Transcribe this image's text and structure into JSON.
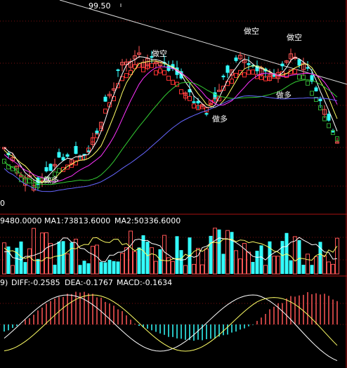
{
  "chart_data": [
    {
      "type": "candlestick",
      "panel": "price",
      "high_label": "99.50",
      "low_label": "0",
      "annotations": [
        {
          "text": "做多",
          "x": 0.14
        },
        {
          "text": "做空",
          "x": 0.44
        },
        {
          "text": "做多",
          "x": 0.61
        },
        {
          "text": "做空",
          "x": 0.7
        },
        {
          "text": "做空",
          "x": 0.85
        },
        {
          "text": "做多",
          "x": 0.82
        }
      ],
      "colors": {
        "up": "#ff5555",
        "down": "#33ffff",
        "ma_white": "#ffffff",
        "ma_yellow": "#ffff66",
        "ma_magenta": "#ff33ff",
        "ma_green": "#33cc33",
        "ma_blue": "#6666ff",
        "trend": "#dddddd",
        "bull_band": "#ff3333",
        "bear_band": "#33aa33"
      }
    },
    {
      "type": "bar",
      "panel": "volume",
      "info_prefix": "9480.0000",
      "ma1_label": "MA1:73813.6000",
      "ma2_label": "MA2:50336.6000"
    },
    {
      "type": "macd",
      "panel": "macd",
      "info_prefix": "9)",
      "diff_label": "DIFF:-0.2585",
      "dea_label": "DEA:-0.1767",
      "macd_label": "MACD:-0.1634"
    }
  ]
}
